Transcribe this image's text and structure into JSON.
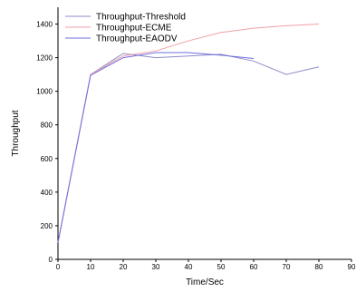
{
  "chart_data": {
    "type": "line",
    "xlabel": "Time/Sec",
    "ylabel": "Throughput",
    "xlim": [
      0,
      90
    ],
    "ylim": [
      0,
      1500
    ],
    "xticks": [
      0,
      10,
      20,
      30,
      40,
      50,
      60,
      70,
      80,
      90
    ],
    "yticks": [
      0,
      200,
      400,
      600,
      800,
      1000,
      1200,
      1400
    ],
    "grid": false,
    "legend_position": "top-left",
    "series": [
      {
        "name": "Throughput-Threshold",
        "color": "#8c8cc8",
        "x": [
          0,
          10,
          20,
          30,
          40,
          50,
          60,
          70,
          80
        ],
        "y": [
          100,
          1100,
          1225,
          1200,
          1210,
          1220,
          1180,
          1100,
          1145
        ]
      },
      {
        "name": "Throughput-ECME",
        "color": "#f0a0a8",
        "x": [
          0,
          10,
          20,
          30,
          40,
          50,
          60,
          70,
          80
        ],
        "y": [
          100,
          1100,
          1210,
          1240,
          1300,
          1350,
          1375,
          1390,
          1400
        ]
      },
      {
        "name": "Throughput-EAODV",
        "color": "#6f6fe0",
        "x": [
          0,
          10,
          20,
          30,
          40,
          50,
          60
        ],
        "y": [
          100,
          1095,
          1200,
          1230,
          1230,
          1215,
          1195
        ]
      }
    ]
  }
}
